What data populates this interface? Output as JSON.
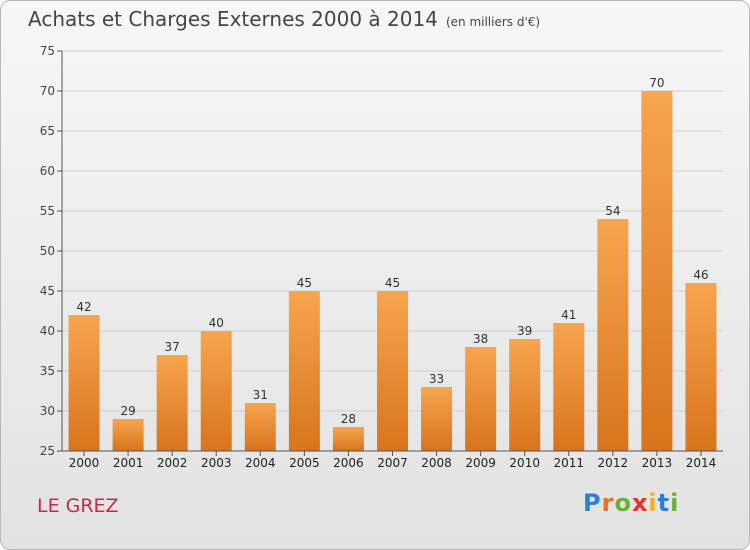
{
  "title": "Achats et Charges Externes 2000 à 2014",
  "unit": "(en milliers d'€)",
  "town": "LE GREZ",
  "logo": [
    "P",
    "r",
    "o",
    "x",
    "i",
    "t",
    "i"
  ],
  "colors": {
    "bar_light": "#f7a54e",
    "bar_dark": "#d8741c",
    "axis": "#555555",
    "grid": "#cfcfcf",
    "town": "#c8284a"
  },
  "chart_data": {
    "type": "bar",
    "categories": [
      "2000",
      "2001",
      "2002",
      "2003",
      "2004",
      "2005",
      "2006",
      "2007",
      "2008",
      "2009",
      "2010",
      "2011",
      "2012",
      "2013",
      "2014"
    ],
    "values": [
      42,
      29,
      37,
      40,
      31,
      45,
      28,
      45,
      33,
      38,
      39,
      41,
      54,
      70,
      46
    ],
    "data_labels": [
      "42",
      "29",
      "37",
      "40",
      "31",
      "45",
      "28",
      "45",
      "33",
      "38",
      "39",
      "41",
      "54",
      "70",
      "46"
    ],
    "yticks": [
      "25",
      "30",
      "35",
      "40",
      "45",
      "50",
      "55",
      "60",
      "65",
      "70",
      "75"
    ],
    "ylim": [
      25,
      75
    ],
    "grid": true,
    "title": "Achats et Charges Externes 2000 à 2014",
    "xlabel": "",
    "ylabel": ""
  }
}
